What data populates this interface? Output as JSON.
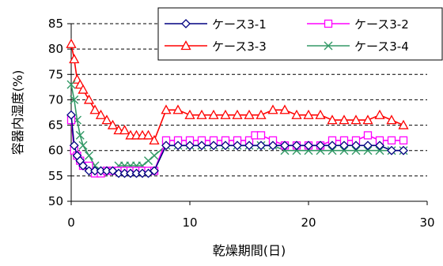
{
  "chart_data": {
    "type": "line",
    "title": "",
    "xlabel": "乾燥期間(日)",
    "ylabel": "容器内湿度(%)",
    "xlim": [
      0,
      30
    ],
    "ylim": [
      50,
      85
    ],
    "xticks": [
      0,
      10,
      20,
      30
    ],
    "yticks": [
      50,
      55,
      60,
      65,
      70,
      75,
      80,
      85
    ],
    "grid": "horizontal dashed",
    "legend_position": "top-right",
    "series": [
      {
        "name": "ケース3-1",
        "color": "#000080",
        "marker": "diamond",
        "points": [
          [
            0,
            67
          ],
          [
            0.25,
            61
          ],
          [
            0.5,
            59
          ],
          [
            0.75,
            58
          ],
          [
            1,
            57
          ],
          [
            1.5,
            56
          ],
          [
            2,
            56
          ],
          [
            2.5,
            56
          ],
          [
            3,
            56
          ],
          [
            3.5,
            56
          ],
          [
            4,
            55.5
          ],
          [
            4.5,
            55.5
          ],
          [
            5,
            55.5
          ],
          [
            5.5,
            55.5
          ],
          [
            6,
            55.5
          ],
          [
            6.5,
            55.5
          ],
          [
            7,
            56
          ],
          [
            8,
            61
          ],
          [
            9,
            61
          ],
          [
            10,
            61
          ],
          [
            11,
            61
          ],
          [
            12,
            61
          ],
          [
            13,
            61
          ],
          [
            14,
            61
          ],
          [
            15,
            61
          ],
          [
            16,
            61
          ],
          [
            17,
            61
          ],
          [
            18,
            61
          ],
          [
            19,
            61
          ],
          [
            20,
            61
          ],
          [
            21,
            61
          ],
          [
            22,
            61
          ],
          [
            23,
            61
          ],
          [
            24,
            61
          ],
          [
            25,
            61
          ],
          [
            26,
            61
          ],
          [
            27,
            60
          ],
          [
            28,
            60
          ]
        ]
      },
      {
        "name": "ケース3-2",
        "color": "#ff00ff",
        "marker": "square",
        "points": [
          [
            0,
            66
          ],
          [
            0.25,
            60
          ],
          [
            0.5,
            59
          ],
          [
            0.75,
            58
          ],
          [
            1,
            57
          ],
          [
            1.5,
            57
          ],
          [
            2,
            55.5
          ],
          [
            2.5,
            55.5
          ],
          [
            3,
            56
          ],
          [
            3.5,
            56
          ],
          [
            4,
            56
          ],
          [
            4.5,
            56
          ],
          [
            5,
            56
          ],
          [
            5.5,
            56
          ],
          [
            6,
            56
          ],
          [
            6.5,
            56
          ],
          [
            7,
            56
          ],
          [
            8,
            62
          ],
          [
            9,
            62
          ],
          [
            10,
            62
          ],
          [
            11,
            62
          ],
          [
            12,
            62
          ],
          [
            13,
            62
          ],
          [
            14,
            62
          ],
          [
            15,
            62
          ],
          [
            15.5,
            63
          ],
          [
            16,
            63
          ],
          [
            17,
            62
          ],
          [
            18,
            61
          ],
          [
            19,
            61
          ],
          [
            20,
            61
          ],
          [
            21,
            61
          ],
          [
            22,
            62
          ],
          [
            23,
            62
          ],
          [
            24,
            62
          ],
          [
            25,
            63
          ],
          [
            26,
            62
          ],
          [
            27,
            62
          ],
          [
            28,
            62
          ]
        ]
      },
      {
        "name": "ケース3-3",
        "color": "#ff0000",
        "marker": "triangle",
        "points": [
          [
            0,
            81
          ],
          [
            0.25,
            78
          ],
          [
            0.5,
            74
          ],
          [
            0.75,
            73
          ],
          [
            1,
            72
          ],
          [
            1.5,
            70
          ],
          [
            2,
            68
          ],
          [
            2.5,
            67
          ],
          [
            3,
            66
          ],
          [
            3.5,
            65
          ],
          [
            4,
            64
          ],
          [
            4.5,
            64
          ],
          [
            5,
            63
          ],
          [
            5.5,
            63
          ],
          [
            6,
            63
          ],
          [
            6.5,
            63
          ],
          [
            7,
            62
          ],
          [
            8,
            68
          ],
          [
            9,
            68
          ],
          [
            10,
            67
          ],
          [
            11,
            67
          ],
          [
            12,
            67
          ],
          [
            13,
            67
          ],
          [
            14,
            67
          ],
          [
            15,
            67
          ],
          [
            16,
            67
          ],
          [
            17,
            68
          ],
          [
            18,
            68
          ],
          [
            19,
            67
          ],
          [
            20,
            67
          ],
          [
            21,
            67
          ],
          [
            22,
            66
          ],
          [
            23,
            66
          ],
          [
            24,
            66
          ],
          [
            25,
            66
          ],
          [
            26,
            67
          ],
          [
            27,
            66
          ],
          [
            28,
            65
          ]
        ]
      },
      {
        "name": "ケース3-4",
        "color": "#339966",
        "marker": "x",
        "points": [
          [
            0,
            73
          ],
          [
            0.25,
            70
          ],
          [
            0.5,
            66
          ],
          [
            0.75,
            63
          ],
          [
            1,
            61
          ],
          [
            1.5,
            59
          ],
          [
            2,
            57
          ],
          [
            2.5,
            56
          ],
          [
            3,
            56
          ],
          [
            3.5,
            56
          ],
          [
            4,
            57
          ],
          [
            4.5,
            57
          ],
          [
            5,
            57
          ],
          [
            5.5,
            57
          ],
          [
            6,
            57
          ],
          [
            6.5,
            58
          ],
          [
            7,
            59
          ],
          [
            8,
            61
          ],
          [
            9,
            61
          ],
          [
            10,
            61
          ],
          [
            11,
            61
          ],
          [
            12,
            61
          ],
          [
            13,
            61
          ],
          [
            14,
            61
          ],
          [
            15,
            61
          ],
          [
            16,
            61
          ],
          [
            17,
            61
          ],
          [
            18,
            60
          ],
          [
            19,
            60
          ],
          [
            20,
            60
          ],
          [
            21,
            60
          ],
          [
            22,
            60
          ],
          [
            23,
            60
          ],
          [
            24,
            60
          ],
          [
            25,
            60
          ],
          [
            26,
            60
          ],
          [
            27,
            60
          ],
          [
            28,
            60
          ]
        ]
      }
    ]
  }
}
